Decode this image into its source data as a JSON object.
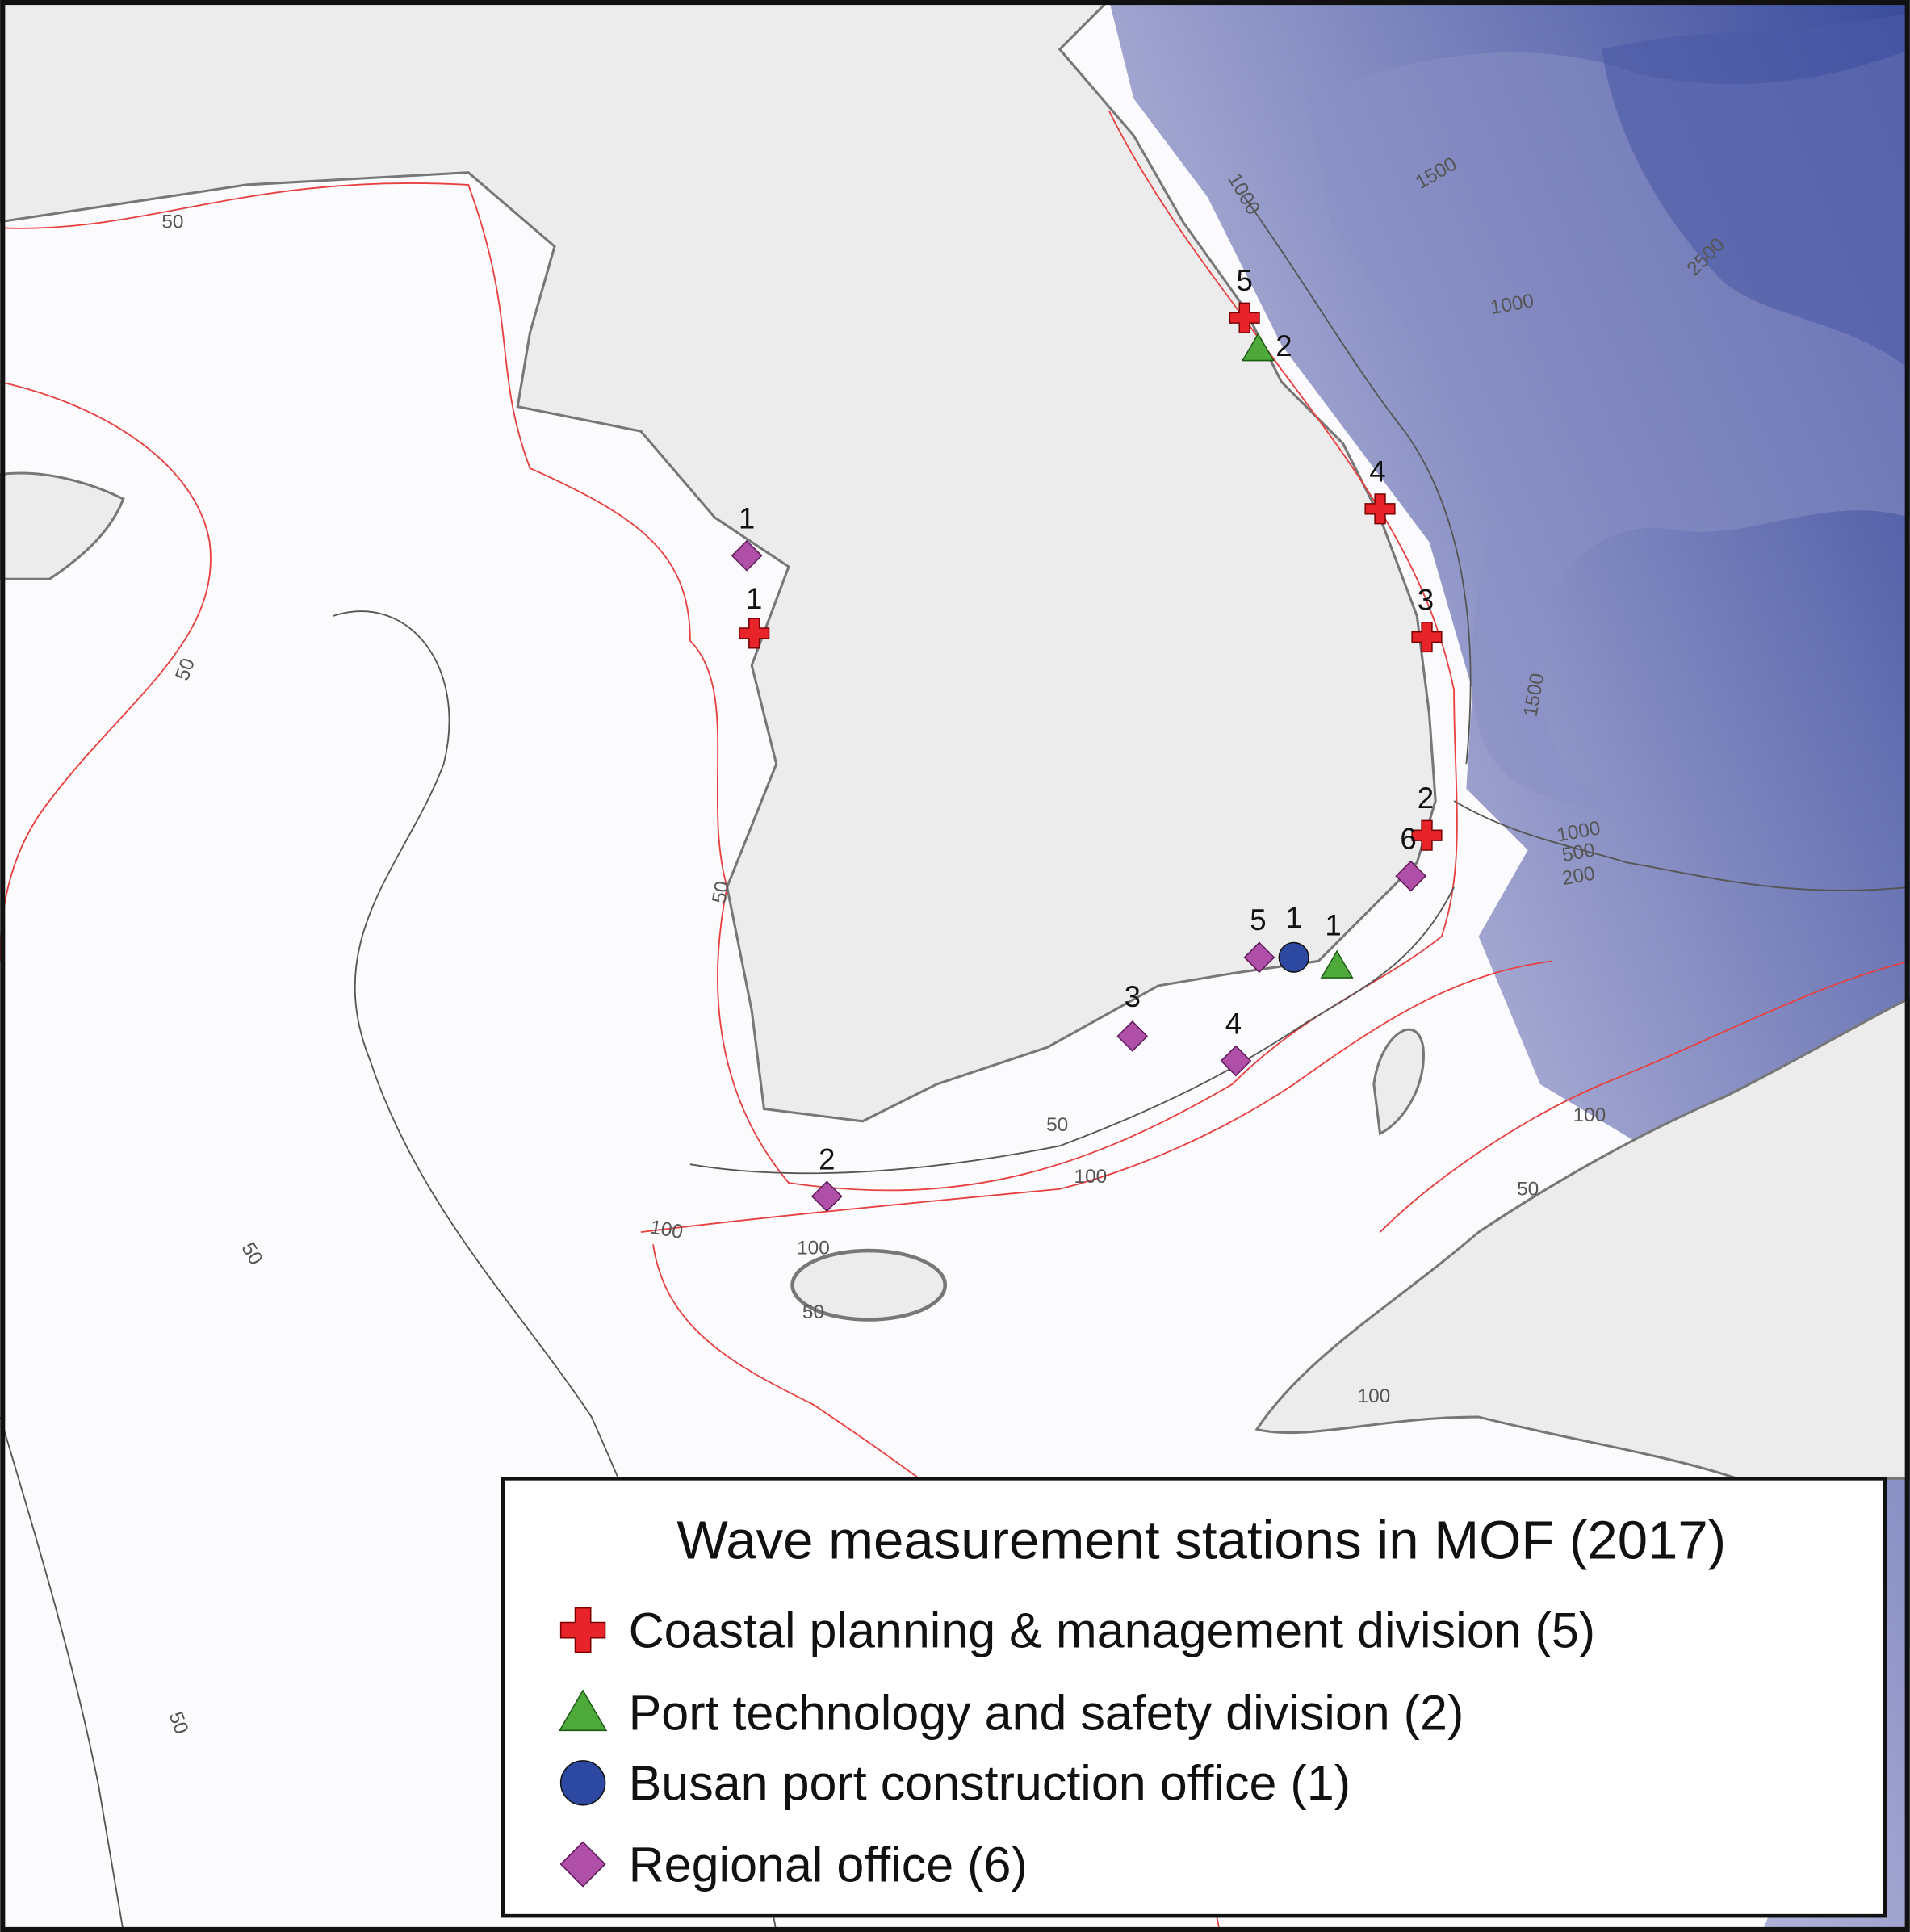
{
  "legend": {
    "title": "Wave measurement stations in MOF (2017)",
    "items": [
      {
        "label": "Coastal planning & management division (5)",
        "symbol": "cross",
        "color": "#e8232a"
      },
      {
        "label": "Port technology and safety division (2)",
        "symbol": "triangle",
        "color": "#4daa3a"
      },
      {
        "label": "Busan port construction office (1)",
        "symbol": "circle",
        "color": "#2c48a0"
      },
      {
        "label": "Regional office (6)",
        "symbol": "diamond",
        "color": "#b04fa8"
      }
    ]
  },
  "stations": [
    {
      "group": 0,
      "label": "1"
    },
    {
      "group": 0,
      "label": "5"
    },
    {
      "group": 0,
      "label": "4"
    },
    {
      "group": 0,
      "label": "3"
    },
    {
      "group": 0,
      "label": "2"
    },
    {
      "group": 1,
      "label": "2"
    },
    {
      "group": 1,
      "label": "1"
    },
    {
      "group": 2,
      "label": "1"
    },
    {
      "group": 3,
      "label": "1"
    },
    {
      "group": 3,
      "label": "2"
    },
    {
      "group": 3,
      "label": "3"
    },
    {
      "group": 3,
      "label": "4"
    },
    {
      "group": 3,
      "label": "5"
    },
    {
      "group": 3,
      "label": "6"
    }
  ],
  "contour_labels": [
    "50",
    "50",
    "50",
    "50",
    "50",
    "50",
    "100",
    "100",
    "100",
    "50",
    "100",
    "50",
    "100",
    "1000",
    "1500",
    "2500",
    "1000",
    "1500",
    "1000",
    "500",
    "200"
  ]
}
